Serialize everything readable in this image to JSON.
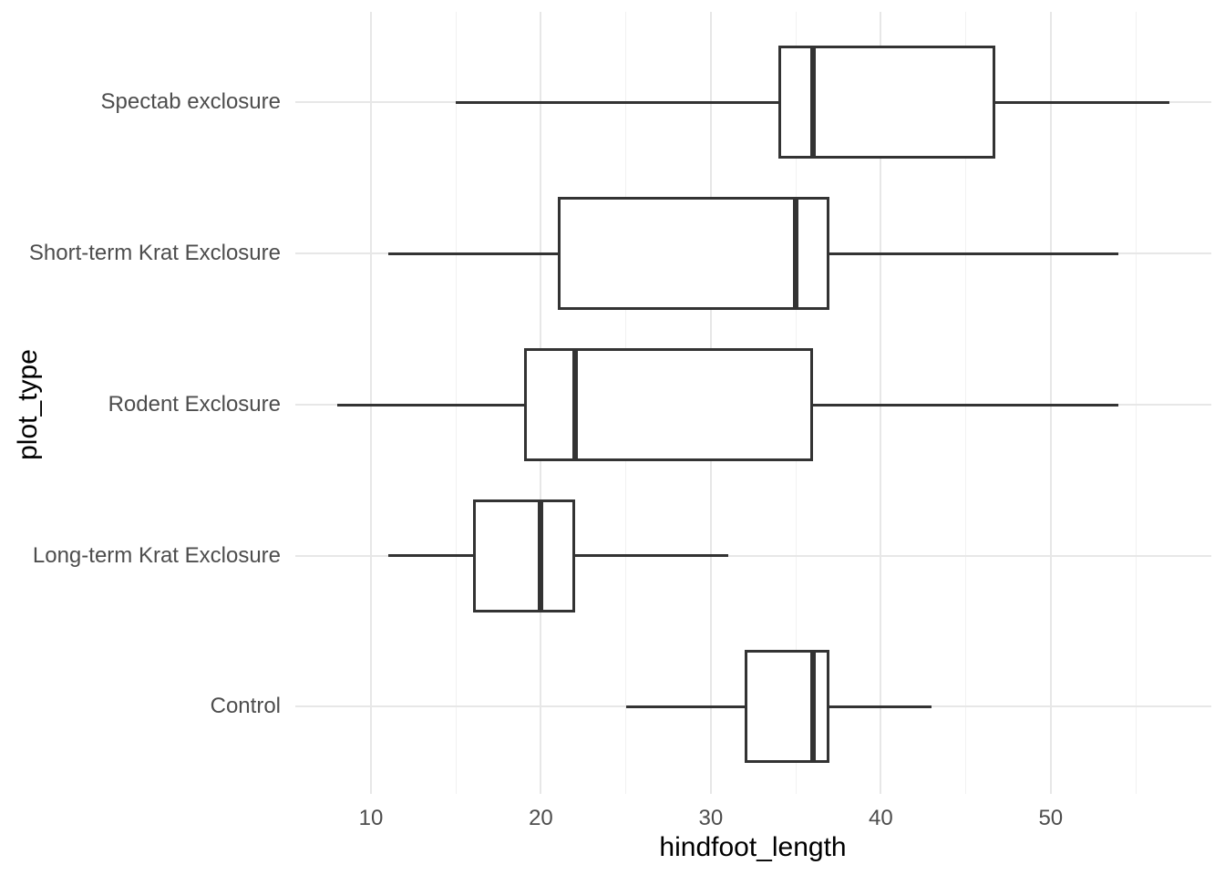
{
  "chart_data": {
    "type": "boxplot",
    "orientation": "horizontal",
    "title": "",
    "xlabel": "hindfoot_length",
    "ylabel": "plot_type",
    "x_ticks": [
      10,
      20,
      30,
      40,
      50
    ],
    "x_minor_ticks": [
      15,
      25,
      35,
      45,
      55
    ],
    "xlim": [
      5.55,
      59.45
    ],
    "grid": "vertical major+minor gridlines, horizontal major gridline per category, no axis ticks, white background",
    "legend": "none",
    "categories_top_to_bottom": [
      "Spectab exclosure",
      "Short-term Krat Exclosure",
      "Rodent Exclosure",
      "Long-term Krat Exclosure",
      "Control"
    ],
    "series": [
      {
        "category": "Spectab exclosure",
        "whisker_min": 15,
        "q1": 34,
        "median": 36,
        "q3": 46.75,
        "whisker_max": 57
      },
      {
        "category": "Short-term Krat Exclosure",
        "whisker_min": 11,
        "q1": 21,
        "median": 35,
        "q3": 37,
        "whisker_max": 54
      },
      {
        "category": "Rodent Exclosure",
        "whisker_min": 8,
        "q1": 19,
        "median": 22,
        "q3": 36,
        "whisker_max": 54
      },
      {
        "category": "Long-term Krat Exclosure",
        "whisker_min": 11,
        "q1": 16,
        "median": 20,
        "q3": 22,
        "whisker_max": 31
      },
      {
        "category": "Control",
        "whisker_min": 25,
        "q1": 32,
        "median": 36,
        "q3": 37,
        "whisker_max": 43
      }
    ],
    "colors": {
      "box_border": "#333333",
      "box_fill": "#ffffff",
      "median_line": "#333333",
      "whisker": "#333333",
      "grid_major": "#e7e7e7",
      "grid_minor": "#f1f1f1",
      "axis_text": "#4d4d4d",
      "axis_title": "#000000",
      "background": "#ffffff"
    }
  }
}
